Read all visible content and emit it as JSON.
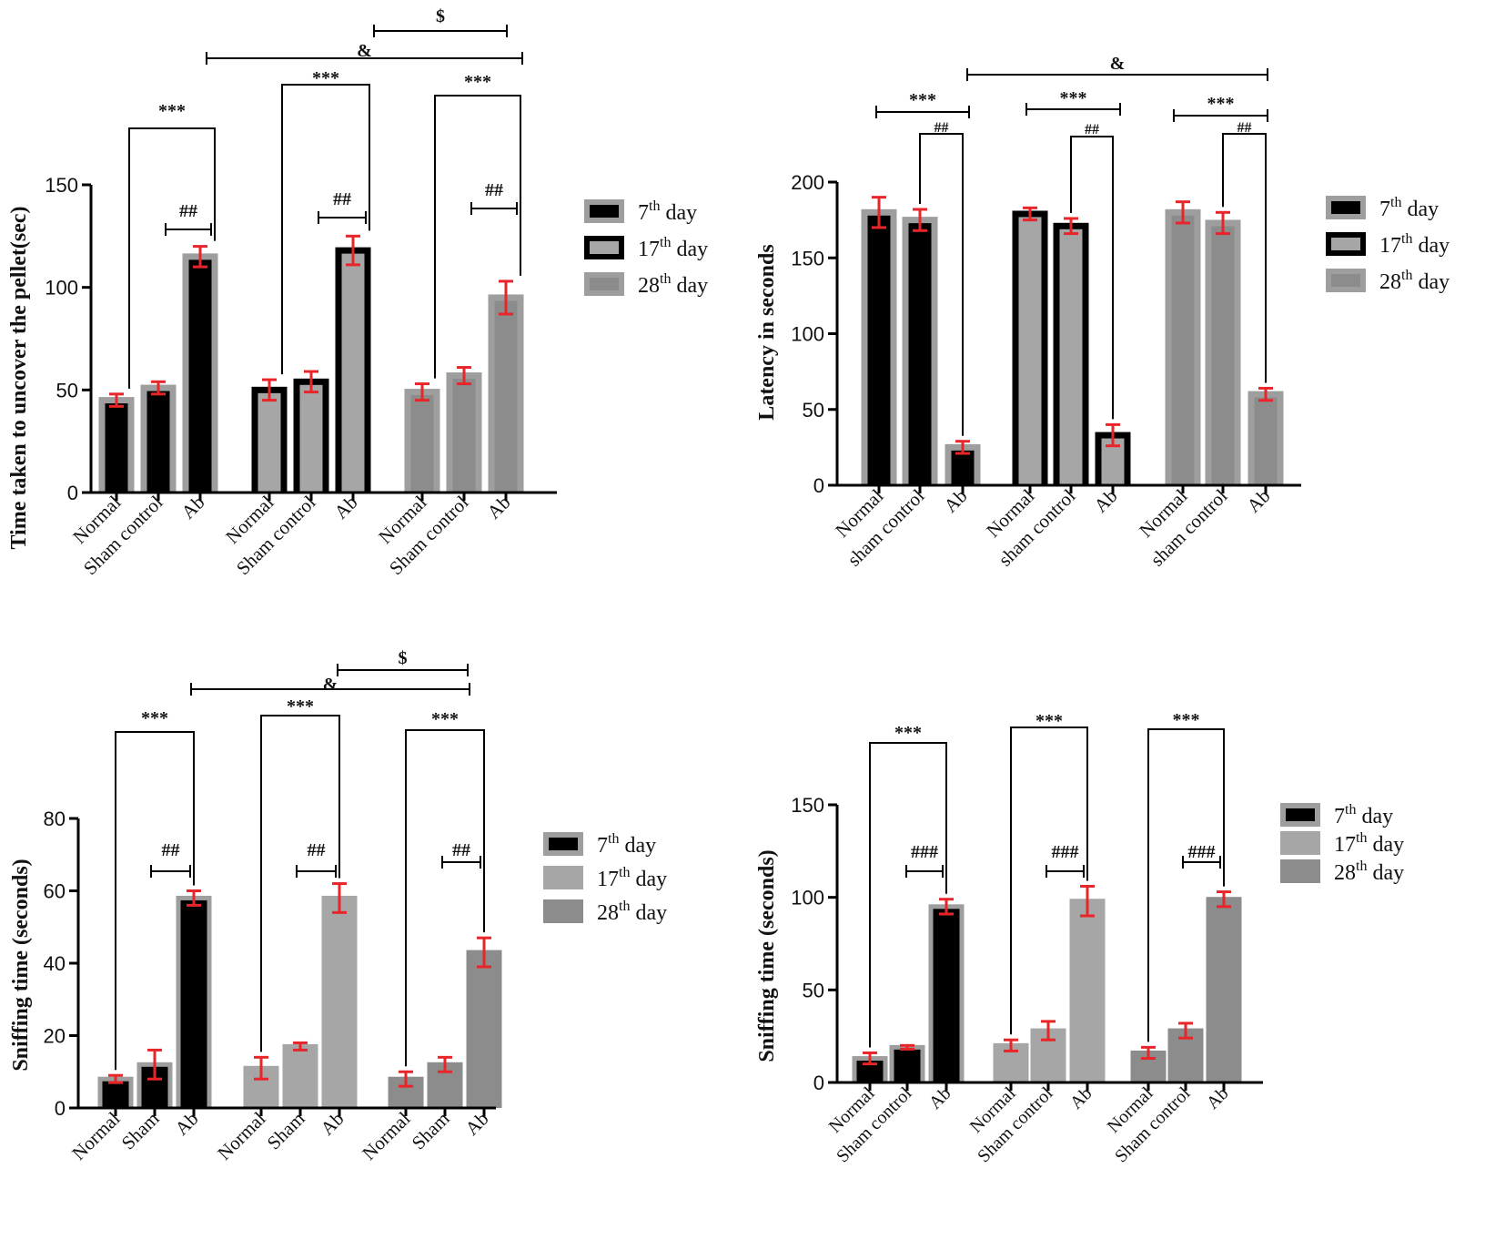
{
  "colors": {
    "black": "#000000",
    "light_gray": "#a6a6a6",
    "mid_gray": "#8c8c8c",
    "frame_gray": "#9e9e9e",
    "error_red": "#e8262a"
  },
  "chart_data": [
    {
      "type": "bar",
      "ylabel": "Time taken to uncover the pellet(sec)",
      "ylim": [
        0,
        150
      ],
      "yticks": [
        "0",
        "50",
        "100",
        "150"
      ],
      "categories": [
        "Normal",
        "Sham control",
        "Ab"
      ],
      "series": [
        {
          "name": "7th day",
          "values": [
            45,
            51,
            115
          ],
          "errors": [
            3,
            3,
            5
          ]
        },
        {
          "name": "17th day",
          "values": [
            50,
            54,
            118
          ],
          "errors": [
            5,
            5,
            7
          ]
        },
        {
          "name": "28th day",
          "values": [
            49,
            57,
            95
          ],
          "errors": [
            4,
            4,
            8
          ]
        }
      ],
      "legend": [
        {
          "base": "7",
          "sup": "th",
          "rest": " day"
        },
        {
          "base": "17",
          "sup": "th",
          "rest": " day"
        },
        {
          "base": "28",
          "sup": "th",
          "rest": " day"
        }
      ],
      "annotations": [
        "***",
        "***",
        "***",
        "##",
        "##",
        "##",
        "&",
        "$"
      ]
    },
    {
      "type": "bar",
      "ylabel": "Latency in seconds",
      "ylim": [
        0,
        200
      ],
      "yticks": [
        "0",
        "50",
        "100",
        "150",
        "200"
      ],
      "categories": [
        "Normal",
        "sham control",
        "Ab"
      ],
      "series": [
        {
          "name": "7th day",
          "values": [
            180,
            175,
            25
          ],
          "errors": [
            10,
            7,
            4
          ]
        },
        {
          "name": "17th day",
          "values": [
            179,
            171,
            33
          ],
          "errors": [
            4,
            5,
            7
          ]
        },
        {
          "name": "28th day",
          "values": [
            180,
            173,
            60
          ],
          "errors": [
            7,
            7,
            4
          ]
        }
      ],
      "legend": [
        {
          "base": "7",
          "sup": "th",
          "rest": " day"
        },
        {
          "base": "17",
          "sup": "th",
          "rest": " day"
        },
        {
          "base": "28",
          "sup": "th",
          "rest": " day"
        }
      ],
      "annotations": [
        "***",
        "***",
        "***",
        "##",
        "##",
        "##",
        "&"
      ]
    },
    {
      "type": "bar",
      "ylabel": "Sniffing time (seconds)",
      "ylim": [
        0,
        80
      ],
      "yticks": [
        "0",
        "20",
        "40",
        "60",
        "80"
      ],
      "categories": [
        "Normal",
        "Sham",
        "Ab"
      ],
      "series": [
        {
          "name": "7th day",
          "values": [
            8,
            12,
            58
          ],
          "errors": [
            1,
            4,
            2
          ]
        },
        {
          "name": "17th day",
          "values": [
            11,
            17,
            58
          ],
          "errors": [
            3,
            1,
            4
          ]
        },
        {
          "name": "28th day",
          "values": [
            8,
            12,
            43
          ],
          "errors": [
            2,
            2,
            4
          ]
        }
      ],
      "legend": [
        {
          "base": "7",
          "sup": "th",
          "rest": " day"
        },
        {
          "base": "17",
          "sup": "th",
          "rest": " day"
        },
        {
          "base": "28",
          "sup": "th",
          "rest": " day"
        }
      ],
      "annotations": [
        "***",
        "***",
        "***",
        "##",
        "##",
        "##",
        "&",
        "$"
      ]
    },
    {
      "type": "bar",
      "ylabel": "Sniffing time (seconds)",
      "ylim": [
        0,
        150
      ],
      "yticks": [
        "0",
        "50",
        "100",
        "150"
      ],
      "categories": [
        "Normal",
        "Sham control",
        "Ab"
      ],
      "series": [
        {
          "name": "7th day",
          "values": [
            13,
            19,
            95
          ],
          "errors": [
            3,
            1,
            4
          ]
        },
        {
          "name": "17th day",
          "values": [
            20,
            28,
            98
          ],
          "errors": [
            3,
            5,
            8
          ]
        },
        {
          "name": "28th day",
          "values": [
            16,
            28,
            99
          ],
          "errors": [
            3,
            4,
            4
          ]
        }
      ],
      "legend": [
        {
          "base": "7",
          "sup": "th",
          "rest": " day"
        },
        {
          "base": "17",
          "sup": "th",
          "rest": " day"
        },
        {
          "base": "28",
          "sup": "th",
          "rest": " day"
        }
      ],
      "annotations": [
        "***",
        "***",
        "***",
        "###",
        "###",
        "###"
      ]
    }
  ]
}
